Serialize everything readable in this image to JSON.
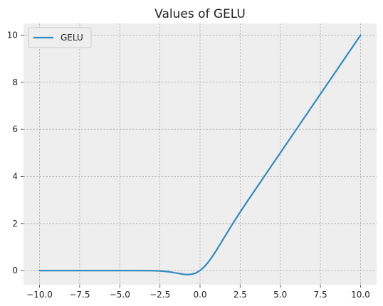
{
  "chart_data": {
    "type": "line",
    "title": "Values of GELU",
    "xlabel": "",
    "ylabel": "",
    "xlim": [
      -11.0,
      11.0
    ],
    "ylim": [
      -0.6,
      10.5
    ],
    "xticks": [
      -10.0,
      -7.5,
      -5.0,
      -2.5,
      0.0,
      2.5,
      5.0,
      7.5,
      10.0
    ],
    "xtick_labels": [
      "−10.0",
      "−7.5",
      "−5.0",
      "−2.5",
      "0.0",
      "2.5",
      "5.0",
      "7.5",
      "10.0"
    ],
    "yticks": [
      0,
      2,
      4,
      6,
      8,
      10
    ],
    "ytick_labels": [
      "0",
      "2",
      "4",
      "6",
      "8",
      "10"
    ],
    "grid": true,
    "legend_position": "top-left",
    "colors": {
      "background": "#eeeeee",
      "grid": "#b0b0b0",
      "line": "#348abd"
    },
    "series": [
      {
        "name": "GELU",
        "x": [
          -10,
          -9,
          -8,
          -7,
          -6,
          -5,
          -4,
          -3,
          -2.5,
          -2,
          -1.5,
          -1.25,
          -1,
          -0.75,
          -0.5,
          -0.25,
          0,
          0.25,
          0.5,
          0.75,
          1,
          1.25,
          1.5,
          2,
          2.5,
          3,
          4,
          5,
          6,
          7,
          8,
          9,
          10
        ],
        "y": [
          0,
          0,
          0,
          0,
          0,
          0,
          -0.0001,
          -0.004,
          -0.0155,
          -0.0455,
          -0.1002,
          -0.132,
          -0.1587,
          -0.17,
          -0.1543,
          -0.0993,
          0,
          0.1507,
          0.3457,
          0.58,
          0.8413,
          1.118,
          1.3998,
          1.9545,
          2.4845,
          2.996,
          3.9999,
          5,
          6,
          7,
          8,
          9,
          10
        ]
      }
    ]
  }
}
